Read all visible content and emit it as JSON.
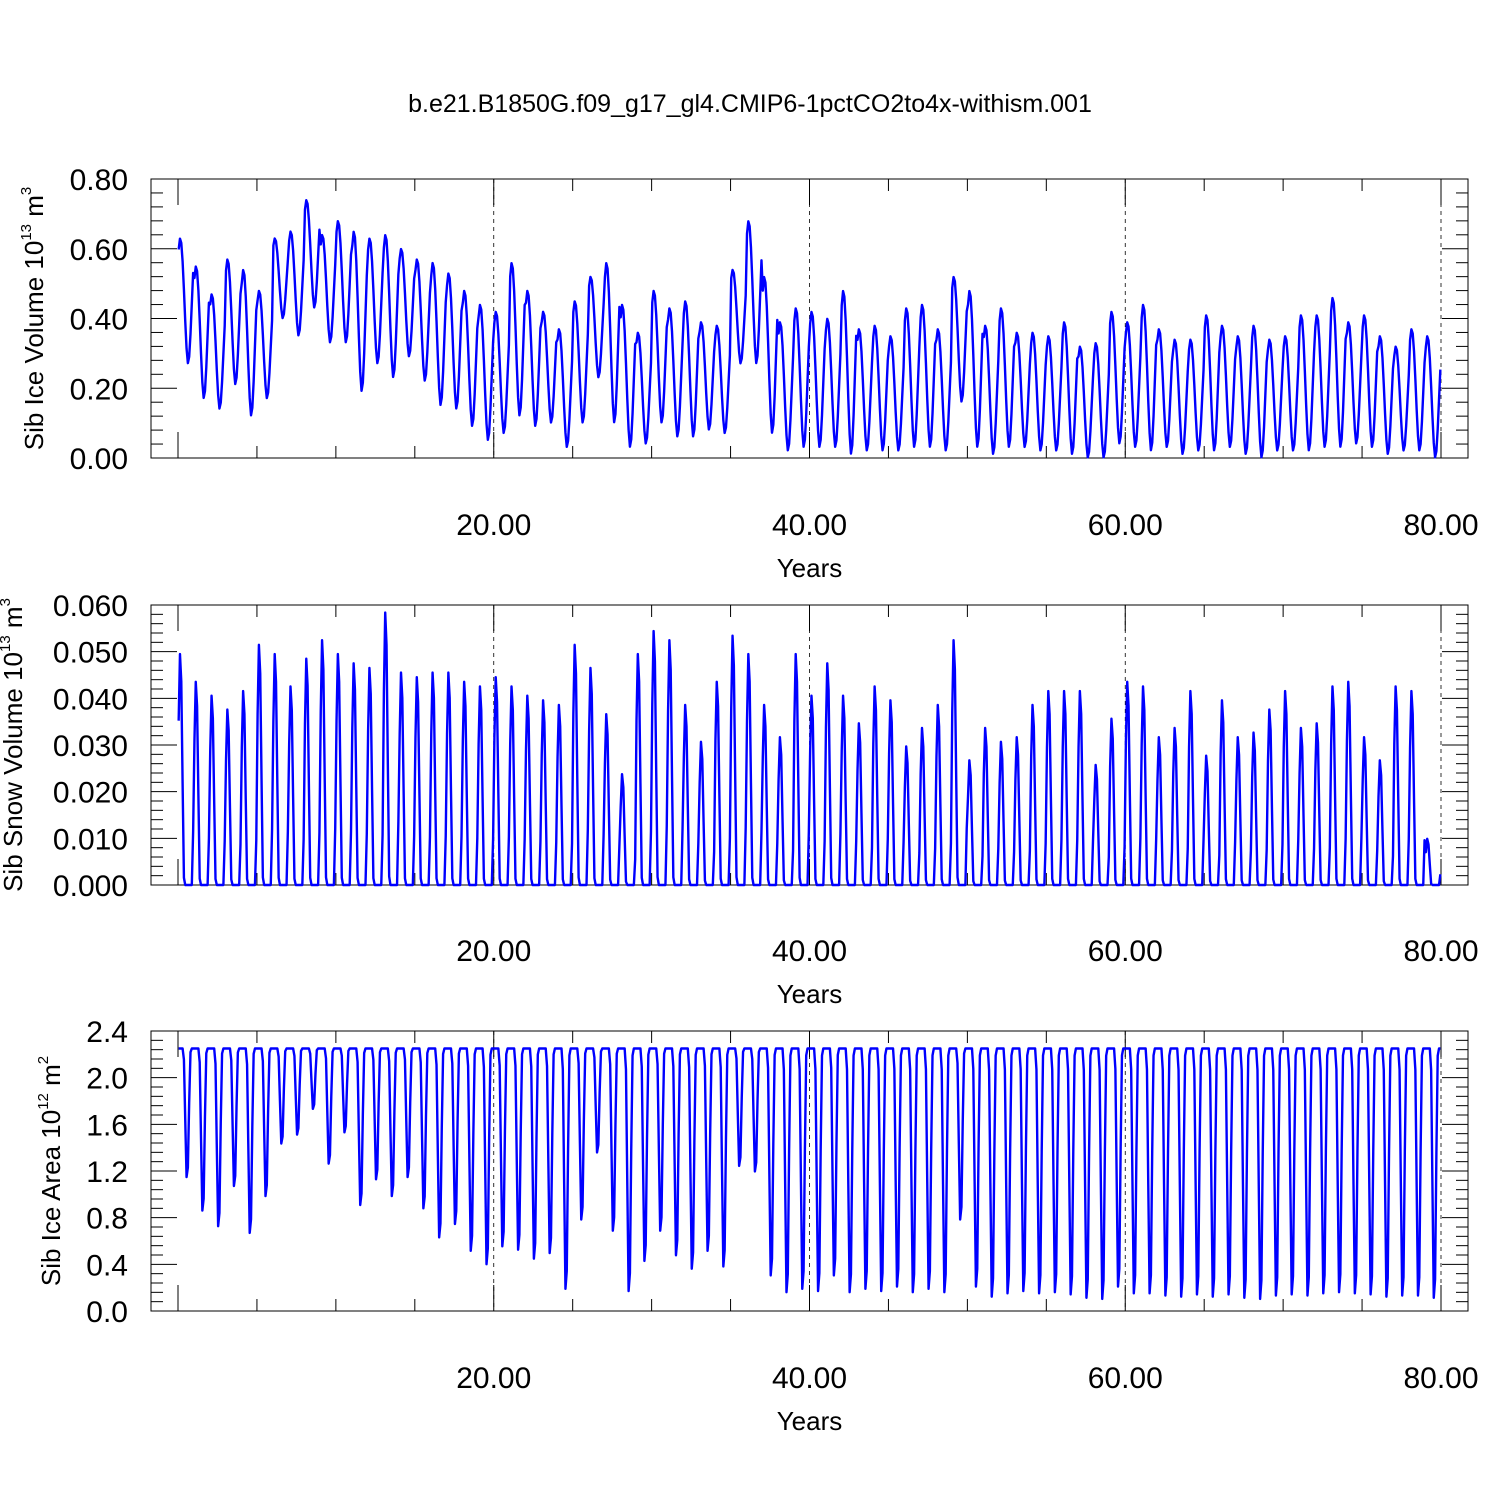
{
  "figure": {
    "title": "b.e21.B1850G.f09_g17_gl4.CMIP6-1pctCO2to4x-withism.001"
  },
  "chart_data": [
    {
      "type": "line",
      "ylabel": "Sib Ice Volume",
      "yunit_base": "10",
      "yunit_exp": "13",
      "yunit_rest": " m",
      "yunit_sup": "3",
      "xlabel": "Years",
      "xlim": [
        0.0,
        80.0
      ],
      "ylim": [
        0.0,
        0.8
      ],
      "yticks": [
        "0.00",
        "0.20",
        "0.40",
        "0.60",
        "0.80"
      ],
      "xticks": [
        "20.00",
        "40.00",
        "60.00",
        "80.00"
      ],
      "grid": "dashed vertical at labeled x ticks",
      "line_color": "#0000ff",
      "series": [
        {
          "points_per_year": 12,
          "annual_max": [
            0.63,
            0.55,
            0.47,
            0.57,
            0.54,
            0.48,
            0.63,
            0.65,
            0.74,
            0.64,
            0.68,
            0.65,
            0.63,
            0.64,
            0.6,
            0.57,
            0.56,
            0.53,
            0.48,
            0.44,
            0.42,
            0.56,
            0.48,
            0.42,
            0.37,
            0.45,
            0.52,
            0.56,
            0.44,
            0.36,
            0.48,
            0.43,
            0.45,
            0.39,
            0.38,
            0.54,
            0.68,
            0.52,
            0.39,
            0.43,
            0.42,
            0.4,
            0.48,
            0.37,
            0.38,
            0.35,
            0.43,
            0.44,
            0.37,
            0.52,
            0.48,
            0.38,
            0.43,
            0.36,
            0.36,
            0.35,
            0.39,
            0.32,
            0.33,
            0.42,
            0.39,
            0.44,
            0.37,
            0.34,
            0.34,
            0.41,
            0.38,
            0.35,
            0.38,
            0.34,
            0.35,
            0.41,
            0.41,
            0.46,
            0.39,
            0.41,
            0.35,
            0.32,
            0.37,
            0.35
          ],
          "annual_min": [
            0.27,
            0.17,
            0.14,
            0.21,
            0.12,
            0.17,
            0.4,
            0.35,
            0.43,
            0.33,
            0.33,
            0.19,
            0.27,
            0.23,
            0.29,
            0.22,
            0.15,
            0.14,
            0.09,
            0.05,
            0.07,
            0.12,
            0.09,
            0.1,
            0.03,
            0.1,
            0.23,
            0.1,
            0.03,
            0.04,
            0.1,
            0.06,
            0.06,
            0.08,
            0.07,
            0.27,
            0.27,
            0.07,
            0.02,
            0.03,
            0.03,
            0.03,
            0.01,
            0.02,
            0.02,
            0.02,
            0.03,
            0.03,
            0.02,
            0.16,
            0.03,
            0.01,
            0.03,
            0.03,
            0.02,
            0.02,
            0.01,
            0.0,
            0.0,
            0.04,
            0.03,
            0.02,
            0.03,
            0.01,
            0.02,
            0.02,
            0.03,
            0.01,
            0.0,
            0.02,
            0.02,
            0.02,
            0.03,
            0.03,
            0.04,
            0.03,
            0.01,
            0.02,
            0.02,
            0.0
          ]
        }
      ]
    },
    {
      "type": "line",
      "ylabel": "Sib Snow Volume",
      "yunit_base": "10",
      "yunit_exp": "13",
      "yunit_rest": " m",
      "yunit_sup": "3",
      "xlabel": "Years",
      "xlim": [
        0.0,
        80.0
      ],
      "ylim": [
        0.0,
        0.06
      ],
      "yticks": [
        "0.000",
        "0.010",
        "0.020",
        "0.030",
        "0.040",
        "0.050",
        "0.060"
      ],
      "xticks": [
        "20.00",
        "40.00",
        "60.00",
        "80.00"
      ],
      "grid": "dashed vertical at labeled x ticks",
      "line_color": "#0000ff",
      "series": [
        {
          "points_per_year": 12,
          "annual_max": [
            0.05,
            0.044,
            0.041,
            0.038,
            0.042,
            0.052,
            0.05,
            0.043,
            0.049,
            0.053,
            0.05,
            0.048,
            0.047,
            0.059,
            0.046,
            0.045,
            0.046,
            0.046,
            0.044,
            0.043,
            0.045,
            0.043,
            0.041,
            0.04,
            0.039,
            0.052,
            0.047,
            0.037,
            0.024,
            0.05,
            0.055,
            0.053,
            0.039,
            0.031,
            0.044,
            0.054,
            0.05,
            0.039,
            0.032,
            0.05,
            0.041,
            0.048,
            0.041,
            0.035,
            0.043,
            0.04,
            0.03,
            0.034,
            0.039,
            0.053,
            0.027,
            0.034,
            0.031,
            0.032,
            0.039,
            0.042,
            0.042,
            0.042,
            0.026,
            0.036,
            0.044,
            0.043,
            0.032,
            0.034,
            0.042,
            0.028,
            0.04,
            0.032,
            0.033,
            0.038,
            0.042,
            0.034,
            0.035,
            0.043,
            0.044,
            0.032,
            0.027,
            0.043,
            0.042,
            0.01
          ]
        }
      ]
    },
    {
      "type": "line",
      "ylabel": "Sib Ice Area",
      "yunit_base": "10",
      "yunit_exp": "12",
      "yunit_rest": " m",
      "yunit_sup": "2",
      "xlabel": "Years",
      "xlim": [
        0.0,
        80.0
      ],
      "ylim": [
        0.0,
        2.4
      ],
      "yticks": [
        "0.0",
        "0.4",
        "0.8",
        "1.2",
        "1.6",
        "2.0",
        "2.4"
      ],
      "xticks": [
        "20.00",
        "40.00",
        "60.00",
        "80.00"
      ],
      "grid": "dashed vertical at labeled x ticks",
      "line_color": "#0000ff",
      "series": [
        {
          "points_per_year": 12,
          "plateau": 2.25,
          "annual_min": [
            1.1,
            0.8,
            0.66,
            1.02,
            0.6,
            0.93,
            1.4,
            1.48,
            1.71,
            1.22,
            1.5,
            0.85,
            1.08,
            0.93,
            1.1,
            0.82,
            0.56,
            0.68,
            0.44,
            0.32,
            0.48,
            0.45,
            0.37,
            0.42,
            0.1,
            0.72,
            1.32,
            0.62,
            0.08,
            0.35,
            0.62,
            0.4,
            0.28,
            0.44,
            0.3,
            1.2,
            1.15,
            0.22,
            0.07,
            0.1,
            0.08,
            0.22,
            0.07,
            0.1,
            0.08,
            0.12,
            0.07,
            0.1,
            0.07,
            0.72,
            0.12,
            0.03,
            0.06,
            0.08,
            0.06,
            0.07,
            0.05,
            0.02,
            0.01,
            0.12,
            0.06,
            0.06,
            0.04,
            0.03,
            0.05,
            0.03,
            0.05,
            0.02,
            0.01,
            0.04,
            0.05,
            0.04,
            0.06,
            0.07,
            0.06,
            0.05,
            0.03,
            0.04,
            0.04,
            0.02
          ]
        }
      ]
    }
  ]
}
